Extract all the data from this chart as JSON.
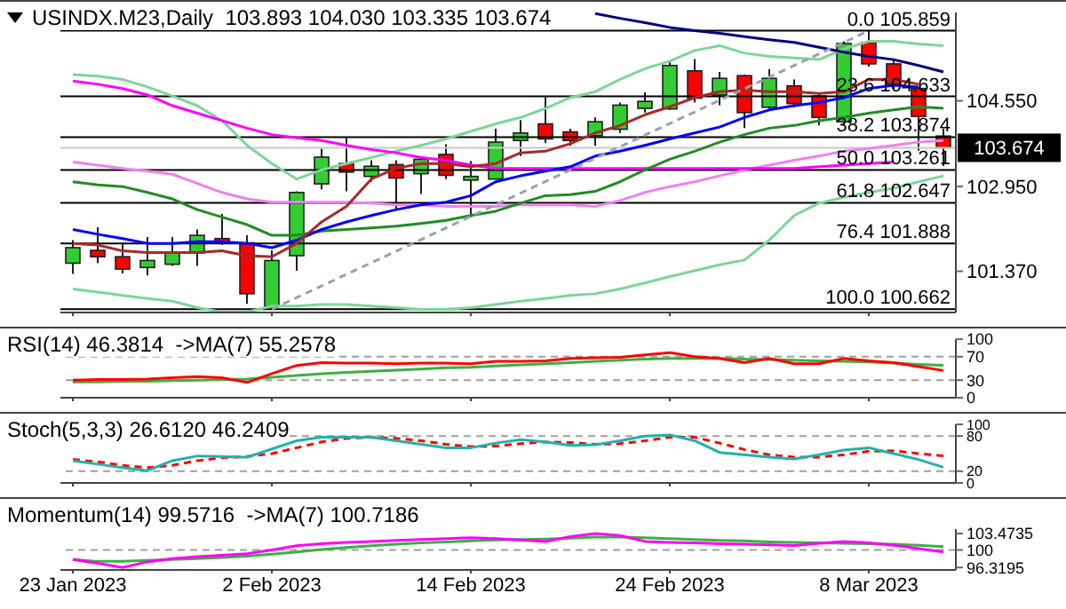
{
  "chart_data": [
    {
      "type": "candlestick",
      "title": "USINDX.M23,Daily  103.893 104.030 103.335 103.674",
      "tick_labels": "y",
      "categories": [
        null,
        null,
        null,
        null,
        null,
        null,
        null,
        null,
        null,
        null,
        null,
        null,
        null,
        null,
        null,
        null,
        null,
        null,
        null,
        null,
        null,
        null,
        null,
        null,
        null,
        null,
        null,
        null,
        null,
        null,
        null,
        null,
        null,
        null,
        null,
        null
      ],
      "ohlc": [
        [
          101.52,
          101.95,
          101.32,
          101.81
        ],
        [
          101.76,
          102.19,
          101.52,
          101.64
        ],
        [
          101.64,
          101.9,
          101.33,
          101.41
        ],
        [
          101.44,
          102.01,
          101.29,
          101.57
        ],
        [
          101.5,
          102.01,
          101.47,
          101.72
        ],
        [
          101.71,
          102.15,
          101.47,
          102.04
        ],
        [
          101.98,
          102.44,
          101.86,
          101.9
        ],
        [
          101.9,
          102.04,
          100.76,
          100.95
        ],
        [
          100.71,
          101.76,
          100.662,
          101.57
        ],
        [
          101.66,
          102.86,
          101.38,
          102.84
        ],
        [
          103.0,
          103.66,
          102.9,
          103.5
        ],
        [
          103.38,
          103.87,
          102.86,
          103.22
        ],
        [
          103.14,
          103.44,
          103.04,
          103.33
        ],
        [
          103.36,
          103.44,
          102.52,
          103.11
        ],
        [
          103.19,
          103.52,
          102.81,
          103.46
        ],
        [
          103.55,
          103.74,
          103.09,
          103.16
        ],
        [
          103.07,
          103.43,
          102.38,
          103.14
        ],
        [
          103.09,
          104.03,
          103.09,
          103.78
        ],
        [
          103.81,
          104.19,
          103.52,
          103.95
        ],
        [
          104.12,
          104.62,
          103.76,
          103.84
        ],
        [
          103.97,
          104.03,
          103.71,
          103.81
        ],
        [
          103.9,
          104.24,
          103.71,
          104.16
        ],
        [
          104.02,
          104.52,
          103.95,
          104.47
        ],
        [
          104.41,
          104.71,
          104.33,
          104.54
        ],
        [
          104.4,
          105.28,
          104.38,
          105.21
        ],
        [
          105.11,
          105.33,
          104.52,
          104.6
        ],
        [
          104.66,
          105.09,
          104.47,
          104.97
        ],
        [
          105.02,
          105.04,
          104.04,
          104.33
        ],
        [
          104.43,
          105.14,
          104.38,
          104.97
        ],
        [
          104.83,
          104.95,
          104.43,
          104.5
        ],
        [
          104.64,
          104.71,
          104.09,
          104.24
        ],
        [
          104.16,
          105.66,
          104.09,
          105.62
        ],
        [
          105.64,
          105.859,
          105.19,
          105.24
        ],
        [
          105.24,
          105.33,
          104.76,
          104.86
        ],
        [
          104.78,
          104.81,
          103.62,
          104.26
        ],
        [
          103.893,
          104.03,
          103.335,
          103.674
        ]
      ],
      "colors": [
        "#32cd32",
        "#ff0000",
        "#ff0000",
        "#32cd32",
        "#32cd32",
        "#32cd32",
        "#ff0000",
        "#ff0000",
        "#32cd32",
        "#32cd32",
        "#32cd32",
        "#ff0000",
        "#32cd32",
        "#ff0000",
        "#32cd32",
        "#ff0000",
        "#32cd32",
        "#32cd32",
        "#32cd32",
        "#ff0000",
        "#ff0000",
        "#32cd32",
        "#32cd32",
        "#32cd32",
        "#32cd32",
        "#ff0000",
        "#32cd32",
        "#ff0000",
        "#32cd32",
        "#ff0000",
        "#ff0000",
        "#32cd32",
        "#ff0000",
        "#ff0000",
        "#ff0000",
        "#ff0000"
      ],
      "series": [
        {
          "type": "line",
          "color": "#7fd49a",
          "values": [
            105.04,
            105.01,
            104.95,
            104.81,
            104.64,
            104.46,
            104.18,
            103.72,
            103.38,
            103.09,
            103.26,
            103.38,
            103.49,
            103.61,
            103.72,
            103.84,
            103.98,
            104.12,
            104.24,
            104.41,
            104.61,
            104.72,
            104.95,
            105.15,
            105.29,
            105.49,
            105.58,
            105.44,
            105.38,
            105.35,
            105.32,
            105.52,
            105.66,
            105.66,
            105.61,
            105.58
          ]
        },
        {
          "type": "line",
          "color": "#7fd49a",
          "values": [
            101.04,
            100.98,
            100.92,
            100.86,
            100.81,
            100.69,
            100.61,
            100.61,
            100.72,
            100.72,
            100.75,
            100.75,
            100.72,
            100.69,
            100.66,
            100.66,
            100.69,
            100.75,
            100.81,
            100.86,
            100.92,
            100.95,
            101.04,
            101.15,
            101.27,
            101.38,
            101.49,
            101.58,
            101.95,
            102.41,
            102.64,
            102.75,
            102.84,
            102.92,
            103.04,
            103.15
          ]
        },
        {
          "type": "line",
          "color": "#ee82ee",
          "values": [
            103.41,
            103.35,
            103.29,
            103.24,
            103.18,
            103.01,
            102.84,
            102.72,
            102.66,
            102.66,
            102.66,
            102.66,
            102.64,
            102.61,
            102.61,
            102.58,
            102.58,
            102.58,
            102.61,
            102.61,
            102.61,
            102.58,
            102.69,
            102.84,
            102.95,
            103.04,
            103.15,
            103.26,
            103.35,
            103.44,
            103.52,
            103.61,
            103.66,
            103.72,
            103.78,
            103.81
          ]
        },
        {
          "type": "line",
          "color": "#ff00ff",
          "values": [
            104.92,
            104.86,
            104.78,
            104.66,
            104.46,
            104.32,
            104.18,
            104.04,
            103.92,
            103.86,
            103.81,
            103.72,
            103.64,
            103.58,
            103.49,
            103.44,
            103.35,
            103.29,
            103.29,
            103.29,
            103.29,
            103.29,
            103.29,
            103.29,
            103.29,
            103.29,
            103.29,
            103.29,
            103.29,
            103.29,
            103.32,
            103.35,
            103.38,
            103.41,
            null,
            null
          ]
        },
        {
          "type": "line",
          "color": "#000080",
          "values": [
            null,
            null,
            null,
            null,
            null,
            null,
            null,
            null,
            null,
            null,
            null,
            null,
            null,
            null,
            null,
            null,
            null,
            null,
            null,
            null,
            null,
            106.18,
            106.09,
            106.01,
            105.92,
            105.86,
            105.81,
            105.75,
            105.69,
            105.64,
            105.55,
            105.46,
            105.38,
            105.32,
            105.21,
            105.09
          ]
        },
        {
          "type": "line",
          "color": "#228b22",
          "values": [
            103.04,
            102.98,
            102.95,
            102.84,
            102.72,
            102.52,
            102.38,
            102.24,
            102.04,
            102.04,
            102.12,
            102.15,
            102.18,
            102.21,
            102.26,
            102.32,
            102.41,
            102.49,
            102.64,
            102.78,
            102.8,
            102.86,
            103.04,
            103.26,
            103.46,
            103.61,
            103.78,
            103.92,
            104.04,
            104.09,
            104.18,
            104.24,
            104.32,
            104.38,
            104.44,
            104.41
          ]
        },
        {
          "type": "line",
          "color": "#0000ff",
          "values": [
            102.15,
            102.06,
            101.98,
            101.89,
            101.89,
            101.92,
            101.92,
            101.89,
            101.81,
            101.95,
            102.15,
            102.29,
            102.41,
            102.52,
            102.61,
            102.66,
            102.78,
            103.04,
            103.15,
            103.24,
            103.32,
            103.52,
            103.61,
            103.72,
            103.84,
            103.95,
            104.06,
            104.24,
            104.38,
            104.46,
            104.52,
            104.61,
            104.78,
            104.84,
            104.81,
            null
          ]
        },
        {
          "type": "line",
          "color": "#a52a2a",
          "values": [
            101.89,
            101.86,
            101.75,
            101.72,
            101.72,
            101.72,
            101.75,
            101.66,
            101.64,
            101.89,
            102.29,
            102.58,
            103.09,
            103.29,
            103.38,
            103.38,
            103.32,
            103.38,
            103.58,
            103.61,
            103.75,
            103.95,
            104.09,
            104.29,
            104.44,
            104.61,
            104.72,
            104.75,
            104.72,
            104.72,
            104.69,
            104.72,
            104.95,
            104.95,
            104.86,
            null
          ]
        },
        {
          "type": "line",
          "color": "#9aa0b4",
          "line_style": "dashed",
          "values": [
            null,
            null,
            null,
            null,
            null,
            null,
            null,
            null,
            100.662,
            null,
            null,
            null,
            null,
            null,
            null,
            null,
            null,
            null,
            null,
            null,
            null,
            null,
            null,
            null,
            null,
            null,
            null,
            null,
            null,
            null,
            null,
            null,
            105.859,
            null,
            null,
            null
          ]
        }
      ],
      "ylim": [
        100.6,
        106.2
      ],
      "yticks": [
        {
          "value": 104.55,
          "label": "104.550"
        },
        {
          "value": 102.95,
          "label": "102.950"
        },
        {
          "value": 101.37,
          "label": "101.370"
        }
      ],
      "ref_lines": [
        {
          "axis": "y",
          "value": 103.674,
          "color": "#c8c8c8"
        },
        {
          "axis": "y",
          "value": 105.859,
          "label": "0.0 105.859",
          "color": "#000000"
        },
        {
          "axis": "y",
          "value": 104.633,
          "label": "23.6 104.633",
          "color": "#000000"
        },
        {
          "axis": "y",
          "value": 103.874,
          "label": "38.2 103.874",
          "color": "#000000"
        },
        {
          "axis": "y",
          "value": 103.261,
          "label": "50.0 103.261",
          "color": "#000000"
        },
        {
          "axis": "y",
          "value": 102.647,
          "label": "61.8 102.647",
          "color": "#000000"
        },
        {
          "axis": "y",
          "value": 101.888,
          "label": "76.4 101.888",
          "color": "#000000"
        },
        {
          "axis": "y",
          "value": 100.662,
          "label": "100.0 100.662",
          "color": "#000000"
        }
      ],
      "annotations": [
        "103.674"
      ],
      "legend": false
    },
    {
      "type": "line",
      "title": "RSI(14) 46.3814  ->MA(7) 55.2578",
      "tick_labels": "y",
      "categories": [
        null,
        null,
        null,
        null,
        null,
        null,
        null,
        null,
        null,
        null,
        null,
        null,
        null,
        null,
        null,
        null,
        null,
        null,
        null,
        null,
        null,
        null,
        null,
        null,
        null,
        null,
        null,
        null,
        null,
        null,
        null,
        null,
        null,
        null,
        null,
        null
      ],
      "series": [
        {
          "color": "#3cb043",
          "values": [
            27,
            27,
            28,
            28,
            29,
            30,
            31,
            32,
            35,
            38,
            41,
            43,
            45,
            47,
            49,
            51,
            52,
            54,
            56,
            58,
            60,
            62,
            64,
            66,
            67,
            67,
            67,
            66,
            65,
            64,
            63,
            62,
            61,
            59,
            57,
            55.2578
          ]
        },
        {
          "color": "#ff0000",
          "values": [
            30,
            31,
            31,
            32,
            34,
            36,
            34,
            26,
            41,
            55,
            60,
            59,
            59,
            58,
            59,
            59,
            58,
            62,
            62,
            63,
            67,
            68,
            69,
            73,
            77,
            70,
            67,
            60,
            67,
            58,
            58,
            67,
            63,
            60,
            53,
            46.3814
          ]
        }
      ],
      "ylim": [
        0,
        100
      ],
      "yticks": [
        0,
        30,
        70,
        100
      ],
      "ref_lines": [
        {
          "axis": "y",
          "value": 70,
          "color": "#a0a0a0",
          "line_style": "dashed"
        },
        {
          "axis": "y",
          "value": 30,
          "color": "#a0a0a0",
          "line_style": "dashed"
        }
      ],
      "legend": false
    },
    {
      "type": "line",
      "title": "Stoch(5,3,3) 26.6120 46.2409",
      "tick_labels": "y",
      "categories": [
        null,
        null,
        null,
        null,
        null,
        null,
        null,
        null,
        null,
        null,
        null,
        null,
        null,
        null,
        null,
        null,
        null,
        null,
        null,
        null,
        null,
        null,
        null,
        null,
        null,
        null,
        null,
        null,
        null,
        null,
        null,
        null,
        null,
        null,
        null,
        null
      ],
      "series": [
        {
          "color": "#ff0000",
          "line_style": "dashed",
          "values": [
            40,
            36,
            30,
            26,
            30,
            38,
            43,
            45,
            50,
            60,
            70,
            76,
            78,
            76,
            72,
            66,
            62,
            63,
            67,
            70,
            69,
            66,
            67,
            72,
            78,
            78,
            68,
            57,
            48,
            44,
            44,
            48,
            54,
            55,
            50,
            46.2409
          ]
        },
        {
          "color": "#20b2aa",
          "values": [
            38,
            32,
            26,
            21,
            38,
            46,
            45,
            44,
            58,
            72,
            78,
            78,
            78,
            72,
            66,
            60,
            60,
            68,
            74,
            70,
            64,
            65,
            72,
            80,
            82,
            72,
            52,
            48,
            44,
            41,
            48,
            56,
            60,
            50,
            40,
            26.612
          ]
        }
      ],
      "ylim": [
        0,
        100
      ],
      "yticks": [
        0,
        20,
        80,
        100
      ],
      "ref_lines": [
        {
          "axis": "y",
          "value": 80,
          "color": "#a0a0a0",
          "line_style": "dashed"
        },
        {
          "axis": "y",
          "value": 20,
          "color": "#a0a0a0",
          "line_style": "dashed"
        }
      ],
      "legend": false
    },
    {
      "type": "line",
      "title": "Momentum(14) 99.5716  ->MA(7) 100.7186",
      "categories": [
        "23 Jan 2023",
        null,
        null,
        null,
        null,
        null,
        null,
        null,
        "2 Feb 2023",
        null,
        null,
        null,
        null,
        null,
        null,
        null,
        "14 Feb 2023",
        null,
        null,
        null,
        null,
        null,
        null,
        null,
        "24 Feb 2023",
        null,
        null,
        null,
        null,
        null,
        null,
        null,
        "8 Mar 2023",
        null,
        null,
        null
      ],
      "series": [
        {
          "color": "#3cb043",
          "values": [
            98.0,
            97.6,
            97.6,
            97.8,
            98.0,
            98.2,
            98.4,
            98.7,
            99.1,
            99.6,
            100.1,
            100.5,
            100.9,
            101.2,
            101.5,
            101.7,
            101.9,
            102.1,
            102.2,
            102.3,
            102.5,
            102.7,
            102.7,
            102.6,
            102.4,
            102.2,
            102.0,
            101.9,
            101.7,
            101.6,
            101.5,
            101.4,
            101.3,
            101.2,
            101.0,
            100.7186
          ]
        },
        {
          "color": "#ff00ff",
          "values": [
            97.99,
            97.2,
            96.32,
            97.5,
            98.2,
            98.6,
            98.9,
            99.2,
            100.0,
            100.9,
            101.3,
            101.6,
            101.8,
            102.0,
            102.2,
            102.4,
            102.6,
            102.4,
            102.1,
            101.8,
            102.8,
            103.47,
            103.05,
            101.8,
            101.6,
            101.5,
            101.3,
            101.2,
            101.1,
            100.95,
            101.4,
            101.8,
            101.5,
            101.0,
            100.3,
            99.5716
          ]
        }
      ],
      "ylim": [
        95.8,
        104.4
      ],
      "yticks": [
        96.3195,
        100,
        103.4735
      ],
      "ref_lines": [
        {
          "axis": "y",
          "value": 100,
          "color": "#a0a0a0",
          "line_style": "dashed"
        }
      ],
      "legend": false
    }
  ]
}
